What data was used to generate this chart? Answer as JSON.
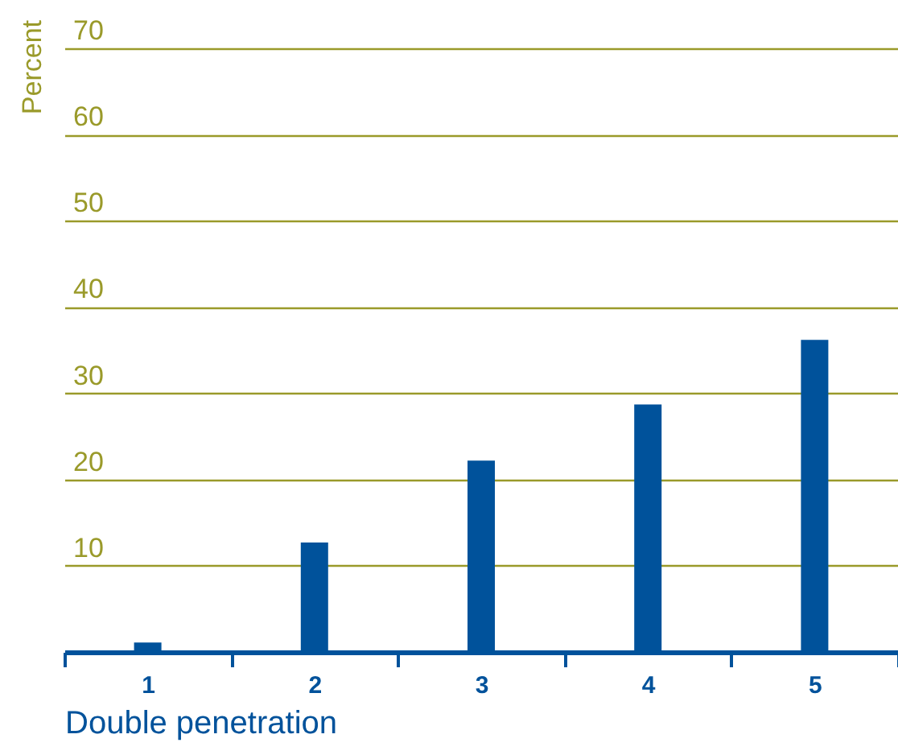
{
  "chart_data": {
    "type": "bar",
    "xlabel": "Double penetration",
    "ylabel": "Percent",
    "categories": [
      "1",
      "2",
      "3",
      "4",
      "5"
    ],
    "values": [
      1.1,
      12.7,
      22.2,
      28.7,
      36.2
    ],
    "color": "#00529b",
    "ylim": [
      0,
      70
    ],
    "yticks": [
      10,
      20,
      30,
      40,
      50,
      60,
      70
    ],
    "grid": "y"
  }
}
